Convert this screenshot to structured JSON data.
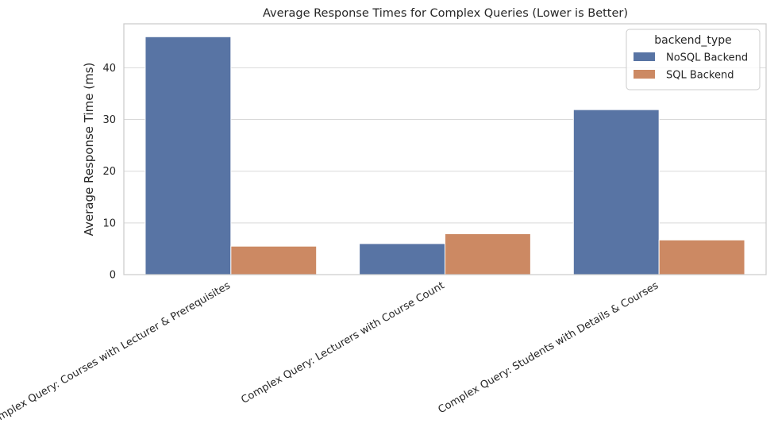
{
  "chart_data": {
    "type": "bar",
    "title": "Average Response Times for Complex Queries (Lower is Better)",
    "xlabel": "",
    "ylabel": "Average Response Time (ms)",
    "categories": [
      "Complex Query: Courses with Lecturer & Prerequisites",
      "Complex Query: Lecturers with Course Count",
      "Complex Query: Students with Details & Courses"
    ],
    "series": [
      {
        "name": "NoSQL Backend",
        "values": [
          46.0,
          6.0,
          31.9
        ],
        "color": "#5874a4"
      },
      {
        "name": "SQL Backend",
        "values": [
          5.5,
          7.9,
          6.7
        ],
        "color": "#cc8963"
      }
    ],
    "ylim": [
      0,
      48.5
    ],
    "yticks": [
      0,
      10,
      20,
      30,
      40
    ],
    "grid": true,
    "legend": {
      "title": "backend_type",
      "placement": "top-right"
    }
  }
}
